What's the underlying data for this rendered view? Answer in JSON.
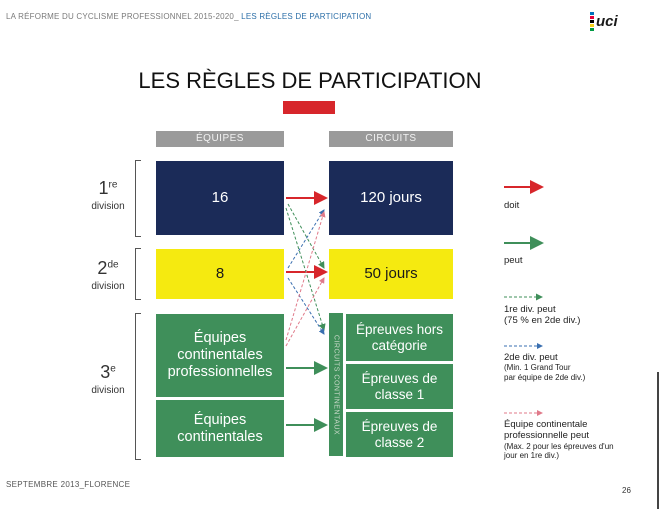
{
  "header": {
    "left_text": "LA RÉFORME DU CYCLISME PROFESSIONNEL 2015-2020_",
    "highlight_text": " LES RÈGLES DE PARTICIPATION"
  },
  "logo": {
    "text": "uci"
  },
  "title": "LES RÈGLES DE PARTICIPATION",
  "columns": {
    "teams": "ÉQUIPES",
    "circuits": "CIRCUITS"
  },
  "divisions": [
    {
      "num": "1",
      "sup": "re",
      "label": "division"
    },
    {
      "num": "2",
      "sup": "de",
      "label": "division"
    },
    {
      "num": "3",
      "sup": "e",
      "label": "division"
    }
  ],
  "teams": [
    {
      "text": "16"
    },
    {
      "text": "8"
    },
    {
      "text": "Équipes continentales professionnelles"
    },
    {
      "text": "Équipes continentales"
    }
  ],
  "circuits": [
    {
      "text": "120 jours"
    },
    {
      "text": "50 jours"
    },
    {
      "text": "Épreuves hors catégorie"
    },
    {
      "text": "Épreuves de classe 1"
    },
    {
      "text": "Épreuves de classe 2"
    }
  ],
  "vertical_bar_text": "CIRCUITS CONTINENTAUX",
  "legend": {
    "doit": "doit",
    "peut": "peut",
    "d1_line1": "1re div. peut",
    "d1_line2": "(75 % en 2de div.)",
    "d2_line1": "2de div. peut",
    "d2_line2": "(Min. 1 Grand Tour",
    "d2_line3": "par équipe de 2de div.)",
    "c_line1": "Équipe continentale",
    "c_line2": "professionnelle peut",
    "c_line3": "(Max. 2 pour les épreuves d'un",
    "c_line4": "jour en 1re div.)"
  },
  "footer": "SEPTEMBRE 2013_FLORENCE",
  "page_number": "26",
  "colors": {
    "navy": "#1b2b58",
    "yellow": "#f5ea10",
    "green": "#3f8f5a",
    "red": "#d7262b",
    "blue_dashed": "#3a6fb0",
    "pink_dashed": "#e07a8a"
  }
}
